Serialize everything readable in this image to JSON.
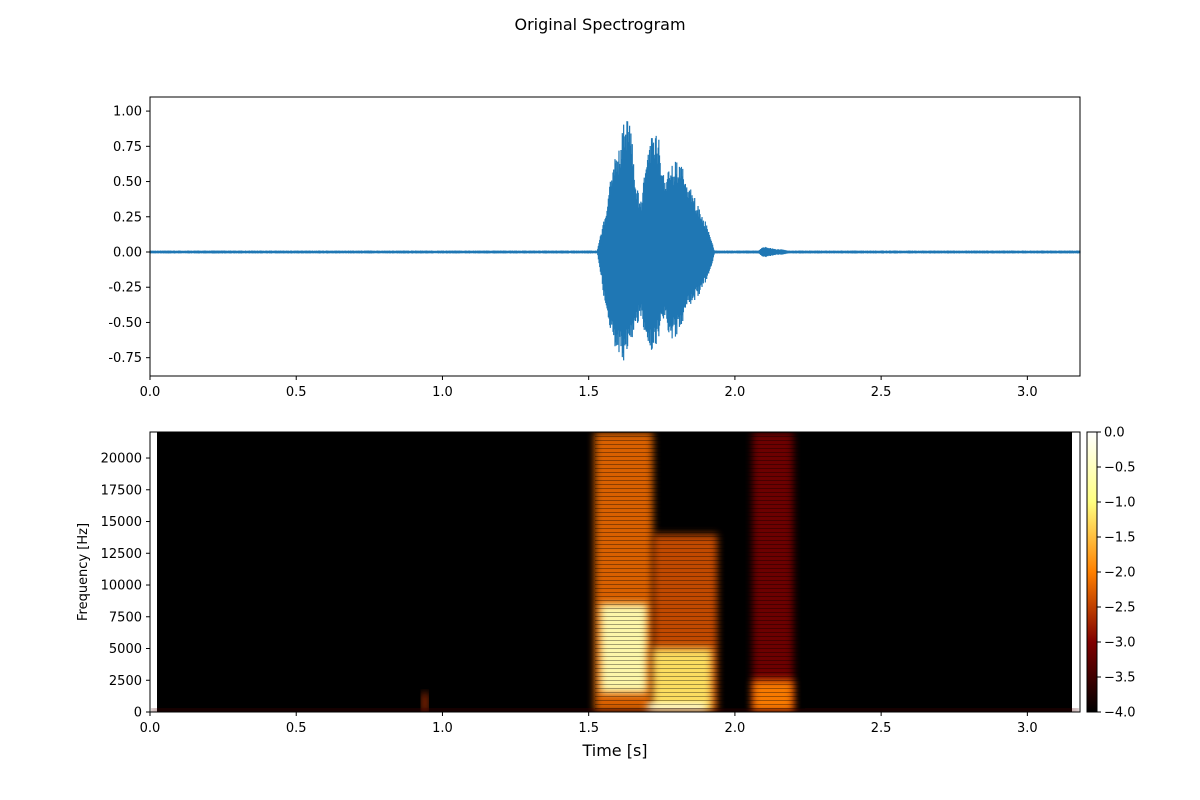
{
  "figure_title": "Original Spectrogram",
  "chart_data": [
    {
      "type": "line",
      "title": "",
      "xlabel": "",
      "ylabel": "",
      "xlim": [
        0.0,
        3.18
      ],
      "ylim": [
        -0.88,
        1.1
      ],
      "xticks": [
        "0.0",
        "0.5",
        "1.0",
        "1.5",
        "2.0",
        "2.5",
        "3.0"
      ],
      "yticks": [
        "1.00",
        "0.75",
        "0.50",
        "0.25",
        "0.00",
        "-0.25",
        "-0.50",
        "-0.75"
      ],
      "color": "#1f77b4",
      "series": [
        {
          "envelope_time": [
            0.0,
            1.53,
            1.54,
            1.56,
            1.58,
            1.6,
            1.62,
            1.64,
            1.66,
            1.68,
            1.7,
            1.72,
            1.74,
            1.76,
            1.78,
            1.8,
            1.82,
            1.84,
            1.86,
            1.88,
            1.9,
            1.92,
            1.93,
            2.08,
            2.1,
            2.12,
            2.14,
            2.16,
            2.18,
            3.18
          ],
          "envelope_max": [
            0.01,
            0.01,
            0.12,
            0.3,
            0.65,
            0.7,
            0.92,
            1.0,
            0.5,
            0.35,
            0.75,
            0.86,
            0.8,
            0.55,
            0.6,
            0.65,
            0.6,
            0.5,
            0.4,
            0.3,
            0.22,
            0.08,
            0.01,
            0.01,
            0.04,
            0.03,
            0.02,
            0.02,
            0.01,
            0.01
          ],
          "envelope_min": [
            -0.01,
            -0.01,
            -0.15,
            -0.45,
            -0.65,
            -0.72,
            -0.78,
            -0.66,
            -0.55,
            -0.45,
            -0.7,
            -0.72,
            -0.6,
            -0.5,
            -0.62,
            -0.6,
            -0.5,
            -0.4,
            -0.35,
            -0.3,
            -0.22,
            -0.1,
            -0.01,
            -0.01,
            -0.04,
            -0.03,
            -0.02,
            -0.02,
            -0.01,
            -0.01
          ]
        }
      ]
    },
    {
      "type": "heatmap",
      "title": "",
      "xlabel": "Time [s]",
      "ylabel": "Frequency [Hz]",
      "xlim": [
        0.0,
        3.18
      ],
      "ylim": [
        0,
        22050
      ],
      "xticks": [
        "0.0",
        "0.5",
        "1.0",
        "1.5",
        "2.0",
        "2.5",
        "3.0"
      ],
      "yticks": [
        "20000",
        "17500",
        "15000",
        "12500",
        "10000",
        "7500",
        "5000",
        "2500",
        "0"
      ],
      "colormap": "afmhot",
      "colorbar": {
        "range": [
          -4.0,
          0.0
        ],
        "ticks": [
          "0.0",
          "−0.5",
          "−1.0",
          "−1.5",
          "−2.0",
          "−2.5",
          "−3.0",
          "−3.5",
          "−4.0"
        ]
      },
      "energy_regions": [
        {
          "t0": 1.52,
          "t1": 1.72,
          "f0": 0,
          "f1": 22050,
          "level": -2.2
        },
        {
          "t0": 1.54,
          "t1": 1.7,
          "f0": 1500,
          "f1": 8500,
          "level": -0.6
        },
        {
          "t0": 1.72,
          "t1": 1.94,
          "f0": 0,
          "f1": 14000,
          "level": -2.4
        },
        {
          "t0": 1.72,
          "t1": 1.92,
          "f0": 0,
          "f1": 5000,
          "level": -1.2
        },
        {
          "t0": 1.7,
          "t1": 1.9,
          "f0": 0,
          "f1": 700,
          "level": -0.3
        },
        {
          "t0": 2.06,
          "t1": 2.2,
          "f0": 0,
          "f1": 22050,
          "level": -3.1
        },
        {
          "t0": 2.06,
          "t1": 2.2,
          "f0": 0,
          "f1": 2500,
          "level": -2.0
        },
        {
          "t0": 0.93,
          "t1": 0.95,
          "f0": 0,
          "f1": 1500,
          "level": -2.6
        },
        {
          "t0": 0.0,
          "t1": 3.18,
          "f0": 0,
          "f1": 250,
          "level": -3.4
        }
      ]
    }
  ]
}
